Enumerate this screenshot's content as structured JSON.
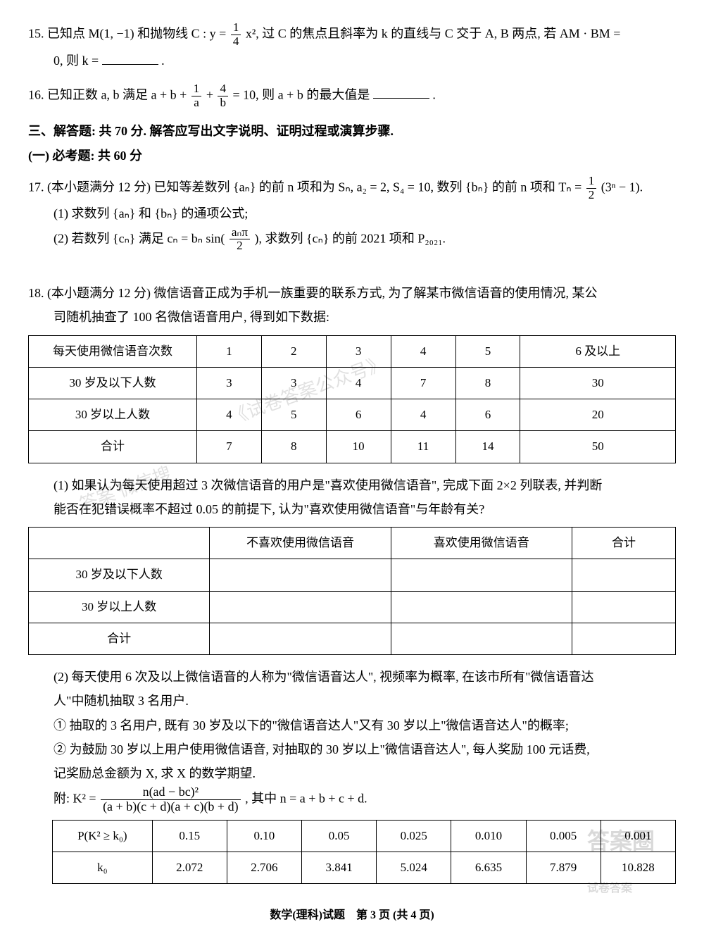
{
  "q15": {
    "num": "15.",
    "text_a": "已知点 M(1, −1) 和抛物线 C : y = ",
    "frac1_num": "1",
    "frac1_den": "4",
    "text_b": " x², 过 C 的焦点且斜率为 k 的直线与 C 交于 A, B 两点, 若 AM · BM =",
    "text_c": "0, 则 k = ",
    "text_d": "."
  },
  "q16": {
    "num": "16.",
    "text_a": "已知正数 a, b 满足 a + b + ",
    "f1n": "1",
    "f1d": "a",
    "text_b": " + ",
    "f2n": "4",
    "f2d": "b",
    "text_c": " = 10, 则 a + b 的最大值是",
    "text_d": "."
  },
  "section3": "三、解答题: 共 70 分. 解答应写出文字说明、证明过程或演算步骤.",
  "section3a": "(一) 必考题: 共 60 分",
  "q17": {
    "num": "17.",
    "lead": "(本小题满分 12 分) 已知等差数列 {aₙ} 的前 n 项和为 Sₙ, a₂ = 2, S₄ = 10, 数列 {bₙ} 的前 n 项和 Tₙ = ",
    "fn": "1",
    "fd": "2",
    "tail": " (3ⁿ − 1).",
    "p1": "(1) 求数列 {aₙ} 和 {bₙ} 的通项公式;",
    "p2a": "(2) 若数列 {cₙ} 满足 cₙ = bₙ sin(",
    "p2_fn": "aₙπ",
    "p2_fd": "2",
    "p2b": "), 求数列 {cₙ} 的前 2021 项和 P₂₀₂₁."
  },
  "q18": {
    "num": "18.",
    "lead1": "(本小题满分 12 分) 微信语音正成为手机一族重要的联系方式, 为了解某市微信语音的使用情况, 某公",
    "lead2": "司随机抽查了 100 名微信语音用户, 得到如下数据:",
    "table1": {
      "headers": [
        "每天使用微信语音次数",
        "1",
        "2",
        "3",
        "4",
        "5",
        "6 及以上"
      ],
      "rows": [
        [
          "30 岁及以下人数",
          "3",
          "3",
          "4",
          "7",
          "8",
          "30"
        ],
        [
          "30 岁以上人数",
          "4",
          "5",
          "6",
          "4",
          "6",
          "20"
        ],
        [
          "合计",
          "7",
          "8",
          "10",
          "11",
          "14",
          "50"
        ]
      ],
      "col_widths": [
        "26%",
        "10%",
        "10%",
        "10%",
        "10%",
        "10%",
        "24%"
      ]
    },
    "p1a": "(1) 如果认为每天使用超过 3 次微信语音的用户是\"喜欢使用微信语音\", 完成下面 2×2 列联表, 并判断",
    "p1b": "能否在犯错误概率不超过 0.05 的前提下, 认为\"喜欢使用微信语音\"与年龄有关?",
    "table2": {
      "headers": [
        "",
        "不喜欢使用微信语音",
        "喜欢使用微信语音",
        "合计"
      ],
      "rows": [
        [
          "30 岁及以下人数",
          "",
          "",
          ""
        ],
        [
          "30 岁以上人数",
          "",
          "",
          ""
        ],
        [
          "合计",
          "",
          "",
          ""
        ]
      ],
      "col_widths": [
        "28%",
        "28%",
        "28%",
        "16%"
      ]
    },
    "p2a": "(2) 每天使用 6 次及以上微信语音的人称为\"微信语音达人\", 视频率为概率, 在该市所有\"微信语音达",
    "p2b": "人\"中随机抽取 3 名用户.",
    "p2_1": "① 抽取的 3 名用户, 既有 30 岁及以下的\"微信语音达人\"又有 30 岁以上\"微信语音达人\"的概率;",
    "p2_2a": "② 为鼓励 30 岁以上用户使用微信语音, 对抽取的 30 岁以上\"微信语音达人\", 每人奖励 100 元话费,",
    "p2_2b": "记奖励总金额为 X, 求 X 的数学期望.",
    "formula_a": "附: K² = ",
    "formula_num": "n(ad − bc)²",
    "formula_den": "(a + b)(c + d)(a + c)(b + d)",
    "formula_b": ", 其中 n = a + b + c + d.",
    "table3": {
      "rows": [
        [
          "P(K² ≥ k₀)",
          "0.15",
          "0.10",
          "0.05",
          "0.025",
          "0.010",
          "0.005",
          "0.001"
        ],
        [
          "k₀",
          "2.072",
          "2.706",
          "3.841",
          "5.024",
          "6.635",
          "7.879",
          "10.828"
        ]
      ],
      "col_widths": [
        "16%",
        "12%",
        "12%",
        "12%",
        "12%",
        "12%",
        "12%",
        "12%"
      ]
    }
  },
  "footer": "数学(理科)试题　第 3 页 (共 4 页)",
  "watermarks": {
    "wm1": "《试卷答案公众号》",
    "wm2": "答案 微信搜",
    "badge": "答案圈",
    "badge2": "试卷答案"
  },
  "colors": {
    "text": "#000000",
    "bg": "#ffffff",
    "border": "#000000",
    "wm": "rgba(0,0,0,0.12)"
  }
}
